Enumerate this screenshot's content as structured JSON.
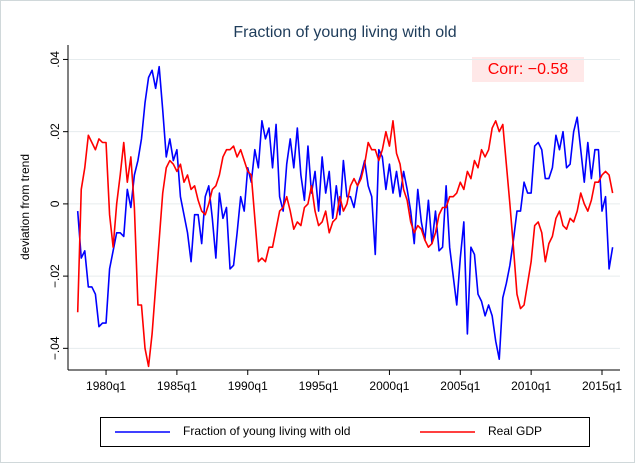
{
  "chart_data": {
    "type": "line",
    "title": "Fraction of young living with old",
    "y_label": "deviation from trend",
    "annotation": "Corr: −0.58",
    "legend": "bottom",
    "grid": true,
    "categories": [
      null,
      null,
      null,
      null,
      null,
      null,
      null,
      null,
      "1980q1",
      null,
      null,
      null,
      null,
      null,
      null,
      null,
      null,
      null,
      null,
      null,
      null,
      null,
      null,
      null,
      null,
      null,
      null,
      null,
      "1985q1",
      null,
      null,
      null,
      null,
      null,
      null,
      null,
      null,
      null,
      null,
      null,
      null,
      null,
      null,
      null,
      null,
      null,
      null,
      null,
      "1990q1",
      null,
      null,
      null,
      null,
      null,
      null,
      null,
      null,
      null,
      null,
      null,
      null,
      null,
      null,
      null,
      null,
      null,
      null,
      null,
      "1995q1",
      null,
      null,
      null,
      null,
      null,
      null,
      null,
      null,
      null,
      null,
      null,
      null,
      null,
      null,
      null,
      null,
      null,
      null,
      null,
      "2000q1",
      null,
      null,
      null,
      null,
      null,
      null,
      null,
      null,
      null,
      null,
      null,
      null,
      null,
      null,
      null,
      null,
      null,
      null,
      null,
      "2005q1",
      null,
      null,
      null,
      null,
      null,
      null,
      null,
      null,
      null,
      null,
      null,
      null,
      null,
      null,
      null,
      null,
      null,
      null,
      null,
      "2010q1",
      null,
      null,
      null,
      null,
      null,
      null,
      null,
      null,
      null,
      null,
      null,
      null,
      null,
      null,
      null,
      null,
      null,
      null,
      null,
      "2015q1",
      null,
      null,
      null
    ],
    "ylim": [
      -0.046,
      0.044
    ],
    "yticks": [
      {
        "value": -0.04,
        "label": "−.04"
      },
      {
        "value": -0.02,
        "label": "−.02"
      },
      0,
      {
        "value": 0.02,
        "label": ".02"
      },
      {
        "value": 0.04,
        "label": ".04"
      }
    ],
    "series": [
      {
        "name": "Fraction of young living with old",
        "color": "#0000ff",
        "values": [
          -0.002,
          -0.015,
          -0.013,
          -0.023,
          -0.023,
          -0.025,
          -0.034,
          -0.033,
          -0.033,
          -0.018,
          -0.013,
          -0.008,
          -0.008,
          -0.009,
          0.004,
          -0.001,
          0.008,
          0.012,
          0.018,
          0.028,
          0.035,
          0.037,
          0.032,
          0.038,
          0.026,
          0.013,
          0.018,
          0.012,
          0.015,
          0.002,
          -0.003,
          -0.008,
          -0.016,
          -0.003,
          -0.003,
          -0.011,
          0.002,
          0.005,
          -0.004,
          -0.015,
          0.003,
          -0.004,
          -0.001,
          -0.018,
          -0.017,
          -0.008,
          0.002,
          -0.002,
          0.01,
          0.006,
          0.015,
          0.01,
          0.023,
          0.018,
          0.021,
          0.01,
          0.022,
          0.002,
          -0.002,
          0.011,
          0.018,
          0.01,
          0.021,
          0.008,
          0.001,
          0.016,
          0.003,
          0.009,
          -0.002,
          0.013,
          0.003,
          0.009,
          -0.004,
          0.005,
          -0.003,
          0.012,
          0.002,
          0.002,
          -0.001,
          0.005,
          0.008,
          0.012,
          0.005,
          0.002,
          -0.014,
          0.015,
          0.013,
          0.004,
          0.011,
          0.003,
          0.009,
          0.002,
          0.009,
          0.004,
          -0.002,
          -0.011,
          0.004,
          -0.005,
          -0.01,
          0.001,
          -0.011,
          -0.002,
          -0.013,
          -0.012,
          0.005,
          -0.012,
          -0.02,
          -0.028,
          -0.015,
          -0.005,
          -0.036,
          -0.012,
          -0.014,
          -0.025,
          -0.027,
          -0.031,
          -0.028,
          -0.031,
          -0.038,
          -0.043,
          -0.026,
          -0.022,
          -0.017,
          -0.01,
          -0.002,
          -0.002,
          0.006,
          0.003,
          0.003,
          0.016,
          0.017,
          0.015,
          0.007,
          0.007,
          0.01,
          0.019,
          0.015,
          0.02,
          0.01,
          0.011,
          0.02,
          0.024,
          0.015,
          0.006,
          0.017,
          0.007,
          0.015,
          0.015,
          -0.002,
          0.002,
          -0.018,
          -0.012
        ]
      },
      {
        "name": "Real GDP",
        "color": "#ff0000",
        "values": [
          -0.03,
          0.004,
          0.01,
          0.019,
          0.017,
          0.015,
          0.018,
          0.017,
          0.017,
          -0.003,
          -0.012,
          0.0,
          0.008,
          0.017,
          0.006,
          0.013,
          -0.001,
          -0.028,
          -0.028,
          -0.04,
          -0.045,
          -0.036,
          -0.023,
          -0.01,
          0.003,
          0.01,
          0.012,
          0.011,
          0.009,
          0.011,
          0.006,
          0.008,
          0.004,
          0.005,
          0.001,
          -0.002,
          -0.003,
          0.0,
          0.004,
          0.005,
          0.008,
          0.013,
          0.015,
          0.015,
          0.016,
          0.013,
          0.015,
          0.012,
          0.009,
          0.008,
          -0.004,
          -0.016,
          -0.015,
          -0.016,
          -0.012,
          -0.012,
          -0.007,
          -0.002,
          -0.001,
          0.002,
          -0.002,
          -0.007,
          -0.005,
          -0.006,
          -0.001,
          0.0,
          0.005,
          -0.002,
          -0.006,
          -0.005,
          -0.002,
          -0.008,
          -0.005,
          -0.004,
          0.002,
          -0.002,
          0.0,
          0.005,
          0.007,
          0.005,
          0.007,
          0.011,
          0.017,
          0.015,
          0.015,
          0.012,
          0.015,
          0.02,
          0.016,
          0.023,
          0.014,
          0.011,
          0.004,
          0.001,
          -0.005,
          -0.008,
          -0.006,
          -0.007,
          -0.01,
          -0.012,
          -0.011,
          -0.008,
          -0.003,
          -0.001,
          -0.001,
          0.002,
          0.002,
          0.003,
          0.006,
          0.004,
          0.009,
          0.007,
          0.012,
          0.01,
          0.015,
          0.013,
          0.015,
          0.021,
          0.023,
          0.02,
          0.022,
          0.011,
          0.0,
          -0.012,
          -0.025,
          -0.029,
          -0.028,
          -0.022,
          -0.016,
          -0.006,
          -0.005,
          -0.008,
          -0.016,
          -0.011,
          -0.009,
          -0.004,
          -0.002,
          -0.006,
          -0.007,
          -0.004,
          -0.005,
          -0.002,
          0.003,
          0.0,
          -0.002,
          0.001,
          0.006,
          0.006,
          0.008,
          0.009,
          0.008,
          0.003
        ]
      }
    ]
  }
}
